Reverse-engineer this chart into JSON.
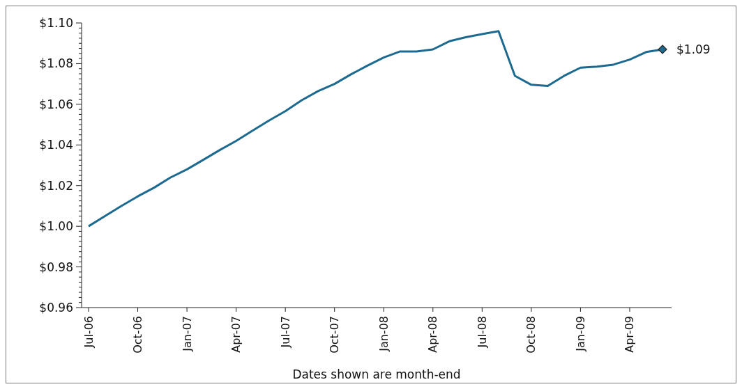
{
  "chart_data": {
    "type": "line",
    "xlabel": "Dates shown are month-end",
    "categories": [
      "Jul-06",
      null,
      null,
      "Oct-06",
      null,
      null,
      "Jan-07",
      null,
      null,
      "Apr-07",
      null,
      null,
      "Jul-07",
      null,
      null,
      "Oct-07",
      null,
      null,
      "Jan-08",
      null,
      null,
      "Apr-08",
      null,
      null,
      "Jul-08",
      null,
      null,
      "Oct-08",
      null,
      null,
      "Jan-09",
      null,
      null,
      "Apr-09",
      null,
      null
    ],
    "series": [
      {
        "color": "#1d6a91",
        "values": [
          1.0,
          1.005,
          1.01,
          1.0147,
          1.019,
          1.024,
          1.028,
          1.0327,
          1.0375,
          1.042,
          1.047,
          1.052,
          1.0566,
          1.062,
          1.0665,
          1.07,
          1.0747,
          1.079,
          1.083,
          1.086,
          1.086,
          1.087,
          1.091,
          1.093,
          1.0945,
          1.096,
          1.074,
          1.0696,
          1.069,
          1.074,
          1.078,
          1.0785,
          1.0795,
          1.082,
          1.0857,
          1.087
        ]
      }
    ],
    "ylim": [
      0.96,
      1.1
    ],
    "yticks": [
      {
        "value": 0.96,
        "label": "$0.96"
      },
      {
        "value": 0.9625,
        "label": null
      },
      {
        "value": 0.965,
        "label": null
      },
      {
        "value": 0.9675,
        "label": null
      },
      {
        "value": 0.97,
        "label": null
      },
      {
        "value": 0.9725,
        "label": null
      },
      {
        "value": 0.975,
        "label": null
      },
      {
        "value": 0.9775,
        "label": null
      },
      {
        "value": 0.98,
        "label": "$0.98"
      },
      {
        "value": 0.9825,
        "label": null
      },
      {
        "value": 0.985,
        "label": null
      },
      {
        "value": 0.9875,
        "label": null
      },
      {
        "value": 0.99,
        "label": null
      },
      {
        "value": 0.9925,
        "label": null
      },
      {
        "value": 0.995,
        "label": null
      },
      {
        "value": 0.9975,
        "label": null
      },
      {
        "value": 1.0,
        "label": "$1.00"
      },
      {
        "value": 1.0025,
        "label": null
      },
      {
        "value": 1.005,
        "label": null
      },
      {
        "value": 1.0075,
        "label": null
      },
      {
        "value": 1.01,
        "label": null
      },
      {
        "value": 1.0125,
        "label": null
      },
      {
        "value": 1.015,
        "label": null
      },
      {
        "value": 1.0175,
        "label": null
      },
      {
        "value": 1.02,
        "label": "$1.02"
      },
      {
        "value": 1.0225,
        "label": null
      },
      {
        "value": 1.025,
        "label": null
      },
      {
        "value": 1.0275,
        "label": null
      },
      {
        "value": 1.03,
        "label": null
      },
      {
        "value": 1.0325,
        "label": null
      },
      {
        "value": 1.035,
        "label": null
      },
      {
        "value": 1.0375,
        "label": null
      },
      {
        "value": 1.04,
        "label": "$1.04"
      },
      {
        "value": 1.0425,
        "label": null
      },
      {
        "value": 1.045,
        "label": null
      },
      {
        "value": 1.0475,
        "label": null
      },
      {
        "value": 1.05,
        "label": null
      },
      {
        "value": 1.0525,
        "label": null
      },
      {
        "value": 1.055,
        "label": null
      },
      {
        "value": 1.0575,
        "label": null
      },
      {
        "value": 1.06,
        "label": "$1.06"
      },
      {
        "value": 1.0625,
        "label": null
      },
      {
        "value": 1.065,
        "label": null
      },
      {
        "value": 1.0675,
        "label": null
      },
      {
        "value": 1.07,
        "label": null
      },
      {
        "value": 1.0725,
        "label": null
      },
      {
        "value": 1.075,
        "label": null
      },
      {
        "value": 1.0775,
        "label": null
      },
      {
        "value": 1.08,
        "label": "$1.08"
      },
      {
        "value": 1.0825,
        "label": null
      },
      {
        "value": 1.085,
        "label": null
      },
      {
        "value": 1.0875,
        "label": null
      },
      {
        "value": 1.09,
        "label": null
      },
      {
        "value": 1.0925,
        "label": null
      },
      {
        "value": 1.095,
        "label": null
      },
      {
        "value": 1.0975,
        "label": null
      },
      {
        "value": 1.1,
        "label": "$1.10"
      }
    ],
    "grid": false,
    "legend": false,
    "annotations": [
      "$1.09"
    ]
  }
}
